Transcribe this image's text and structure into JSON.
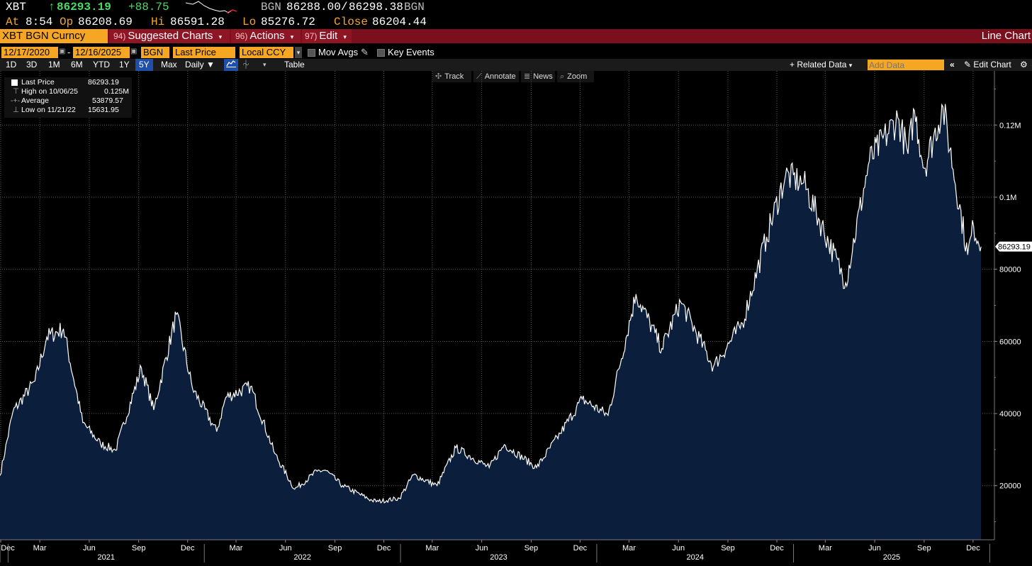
{
  "header": {
    "ticker": "XBT",
    "arrow": "↑",
    "last_price": "86293.19",
    "change": "+88.75",
    "bid_ask_source": "BGN",
    "bid": "86288.00",
    "ask": "86298.38",
    "ask_source": "BGN",
    "at_label": "At",
    "time": "8:54",
    "op_label": "Op",
    "open": "86208.69",
    "hi_label": "Hi",
    "high": "86591.28",
    "lo_label": "Lo",
    "low": "85276.72",
    "close_label": "Close",
    "close": "86204.44"
  },
  "menubar": {
    "security": "XBT BGN Curncy",
    "suggested_num": "94)",
    "suggested_label": "Suggested Charts",
    "actions_num": "96)",
    "actions_label": "Actions",
    "edit_num": "97)",
    "edit_label": "Edit",
    "chart_type": "Line Chart"
  },
  "params": {
    "start_date": "12/17/2020",
    "dash": "-",
    "end_date": "12/16/2025",
    "source": "BGN",
    "field": "Last Price",
    "currency": "Local CCY",
    "mov_avgs": "Mov Avgs",
    "key_events": "Key Events"
  },
  "toolbar": {
    "periods": [
      "1D",
      "3D",
      "1M",
      "6M",
      "YTD",
      "1Y",
      "5Y",
      "Max"
    ],
    "selected_period": "5Y",
    "frequency": "Daily",
    "table": "Table",
    "related_data": "Related Data",
    "add_data_placeholder": "Add Data",
    "edit_chart": "Edit Chart"
  },
  "chart_tools": {
    "track": "Track",
    "annotate": "Annotate",
    "news": "News",
    "zoom": "Zoom"
  },
  "legend": {
    "last_label": "Last Price",
    "last_value": "86293.19",
    "high_label": "High on 10/06/25",
    "high_value": "0.125M",
    "avg_label": "Average",
    "avg_value": "53879.57",
    "low_label": "Low on 11/21/22",
    "low_value": "15631.95"
  },
  "colors": {
    "background": "#000000",
    "area_fill": "#0b1f3d",
    "line": "#ffffff",
    "amber": "#f5a623",
    "menubar": "#7b0f1d",
    "positive": "#4cd964"
  },
  "chart_data": {
    "type": "area",
    "series": [
      {
        "name": "Last Price",
        "x": [
          "2020-12-17",
          "2021-01-10",
          "2021-02-20",
          "2021-03-14",
          "2021-04-14",
          "2021-05-20",
          "2021-06-22",
          "2021-07-20",
          "2021-09-06",
          "2021-09-29",
          "2021-11-10",
          "2021-12-10",
          "2022-01-24",
          "2022-02-10",
          "2022-03-28",
          "2022-05-12",
          "2022-06-18",
          "2022-07-30",
          "2022-08-14",
          "2022-09-15",
          "2022-11-09",
          "2022-11-21",
          "2022-12-30",
          "2023-01-25",
          "2023-03-10",
          "2023-04-14",
          "2023-06-15",
          "2023-07-13",
          "2023-09-11",
          "2023-10-25",
          "2023-12-05",
          "2024-01-22",
          "2024-03-14",
          "2024-05-01",
          "2024-06-05",
          "2024-08-05",
          "2024-09-28",
          "2024-11-12",
          "2024-12-17",
          "2025-01-20",
          "2025-04-08",
          "2025-05-22",
          "2025-07-14",
          "2025-08-02",
          "2025-08-14",
          "2025-09-01",
          "2025-10-06",
          "2025-11-21",
          "2025-12-02",
          "2025-12-16"
        ],
        "y": [
          22800,
          40500,
          49000,
          61200,
          63500,
          37500,
          31600,
          29800,
          52700,
          41000,
          67500,
          47000,
          35000,
          44500,
          47500,
          28900,
          19000,
          24000,
          24300,
          20000,
          15900,
          15632,
          16500,
          23000,
          20000,
          30500,
          25000,
          31400,
          25000,
          34500,
          44000,
          39500,
          73100,
          58000,
          71000,
          53000,
          65000,
          89000,
          106000,
          104000,
          76300,
          110000,
          122000,
          112000,
          124000,
          108000,
          125000,
          84000,
          92000,
          86293
        ]
      }
    ],
    "ylim": [
      5000,
      135000
    ],
    "y_ticks": [
      "20000",
      "40000",
      "60000",
      "80000",
      "0.1M",
      "0.12M"
    ],
    "x_month_ticks": [
      "Dec",
      "Mar",
      "Jun",
      "Sep",
      "Dec",
      "Mar",
      "Jun",
      "Sep",
      "Dec",
      "Mar",
      "Jun",
      "Sep",
      "Dec",
      "Mar",
      "Jun",
      "Sep",
      "Dec",
      "Mar",
      "Jun",
      "Sep",
      "Dec"
    ],
    "x_year_labels": [
      "2021",
      "2022",
      "2023",
      "2024",
      "2025"
    ],
    "last_value_tag": "86293.19",
    "grid": true
  }
}
